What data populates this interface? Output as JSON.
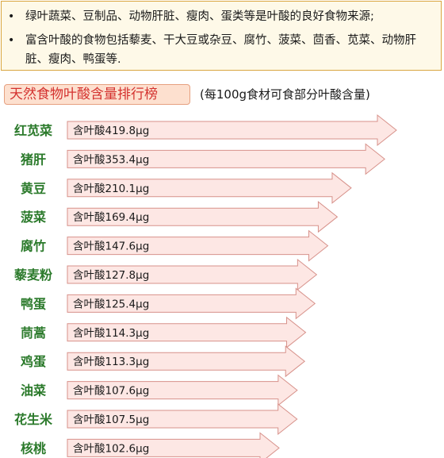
{
  "info": {
    "items": [
      "绿叶蔬菜、豆制品、动物肝脏、瘦肉、蛋类等是叶酸的良好食物来源;",
      "富含叶酸的食物包括藜麦、干大豆或杂豆、腐竹、菠菜、茴香、苋菜、动物肝脏、瘦肉、鸭蛋等."
    ],
    "bullet": "•"
  },
  "title": "天然食物叶酸含量排行榜",
  "subtitle": "(每100g食材可食部分叶酸含量)",
  "bar_prefix": "含叶酸",
  "unit": "μg",
  "colors": {
    "label_green": "#2b7a2b",
    "title_red": "#d4322f",
    "arrow_fill": "#fde7e4",
    "arrow_stroke": "#d7918a"
  },
  "chart_data": {
    "type": "bar",
    "orientation": "horizontal",
    "title": "天然食物叶酸含量排行榜",
    "subtitle": "(每100g食材可食部分叶酸含量)",
    "categories": [
      "红苋菜",
      "猪肝",
      "黄豆",
      "菠菜",
      "腐竹",
      "藜麦粉",
      "鸭蛋",
      "茼蒿",
      "鸡蛋",
      "油菜",
      "花生米",
      "核桃"
    ],
    "values": [
      419.8,
      353.4,
      210.1,
      169.4,
      147.6,
      127.8,
      125.4,
      114.3,
      113.3,
      107.6,
      107.5,
      102.6
    ],
    "labels": [
      "含叶酸419.8μg",
      "含叶酸353.4μg",
      "含叶酸210.1μg",
      "含叶酸169.4μg",
      "含叶酸147.6μg",
      "含叶酸127.8μg",
      "含叶酸125.4μg",
      "含叶酸114.3μg",
      "含叶酸113.3μg",
      "含叶酸107.6μg",
      "含叶酸107.5μg",
      "含叶酸102.6μg"
    ],
    "unit": "μg",
    "xlabel": "",
    "ylabel": "",
    "grid": false,
    "legend": "none"
  }
}
